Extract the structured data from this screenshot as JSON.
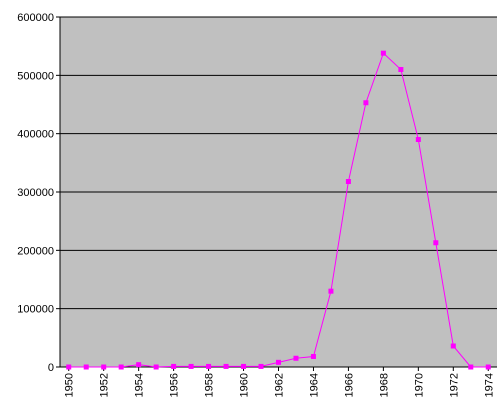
{
  "chart_data": {
    "type": "line",
    "x": [
      1950,
      1951,
      1952,
      1953,
      1954,
      1955,
      1956,
      1957,
      1958,
      1959,
      1960,
      1961,
      1962,
      1963,
      1964,
      1965,
      1966,
      1967,
      1968,
      1969,
      1970,
      1971,
      1972,
      1973,
      1974
    ],
    "series": [
      {
        "color": "#ff00ff",
        "values": [
          0,
          0,
          0,
          0,
          4000,
          0,
          1000,
          1000,
          1000,
          1000,
          1000,
          1000,
          8000,
          15000,
          18000,
          130000,
          318000,
          453000,
          538000,
          510000,
          390000,
          213000,
          36000,
          0,
          0
        ]
      }
    ],
    "xlim": [
      1949.5,
      1974.5
    ],
    "xticks": [
      1950,
      1952,
      1954,
      1956,
      1958,
      1960,
      1962,
      1964,
      1966,
      1968,
      1970,
      1972,
      1974
    ],
    "ylim": [
      0,
      600000
    ],
    "yticks": [
      0,
      100000,
      200000,
      300000,
      400000,
      500000,
      600000
    ],
    "grid": true,
    "plot_background": "#c0c0c0"
  }
}
